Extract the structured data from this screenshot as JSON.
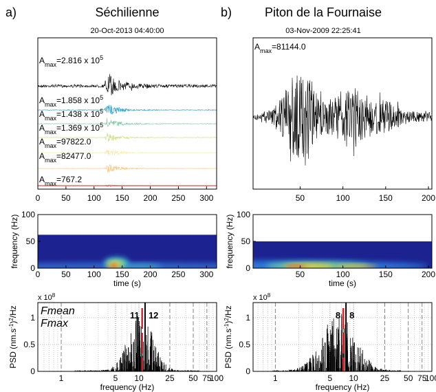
{
  "panels": [
    {
      "letter": "a)",
      "title": "Séchilienne",
      "date": "20-Oct-2013 04:40:00",
      "seismogram": {
        "type": "line",
        "xlim": [
          0,
          318
        ],
        "xticks": [
          0,
          50,
          100,
          150,
          200,
          250,
          300
        ],
        "traces": [
          {
            "color": "#000000",
            "amax": {
              "symbol": "A",
              "sub": "max",
              "text": "=2.816 x 10",
              "exp": "5"
            }
          },
          {
            "color": "#2e9bc2",
            "amax": {
              "symbol": "A",
              "sub": "max",
              "text": "=1.858 x 10",
              "exp": "5"
            }
          },
          {
            "color": "#7dc4a0",
            "amax": {
              "symbol": "A",
              "sub": "max",
              "text": "=1.438 x 10",
              "exp": "5"
            }
          },
          {
            "color": "#c8df7a",
            "amax": {
              "symbol": "A",
              "sub": "max",
              "text": "=1.369 x 10",
              "exp": "5"
            }
          },
          {
            "color": "#f2ea9a",
            "amax": {
              "symbol": "A",
              "sub": "max",
              "text": "=97822.0"
            }
          },
          {
            "color": "#f8c47a",
            "amax": {
              "symbol": "A",
              "sub": "max",
              "text": "=82477.0"
            }
          },
          {
            "color": "#e86a6a",
            "amax": {
              "symbol": "A",
              "sub": "max",
              "text": "=767.2"
            }
          }
        ]
      },
      "spectrogram": {
        "type": "heatmap",
        "ylabel": "frequency (Hz)",
        "xlabel": "time (s)",
        "xlim": [
          0,
          318
        ],
        "xticks": [
          0,
          50,
          100,
          150,
          200,
          250,
          300
        ],
        "ylim": [
          0,
          100
        ],
        "yticks": [
          0,
          50,
          100
        ],
        "nyquist": 62.5
      },
      "psd": {
        "type": "bar",
        "log_x": true,
        "xlabel": "frequency (Hz)",
        "ylabel": [
          {
            "text": "PSD (nm.s"
          },
          {
            "sup": "-1"
          },
          {
            "text": ")"
          },
          {
            "sup": "2"
          },
          {
            "text": "/Hz"
          }
        ],
        "multiplier": {
          "text": "x 10",
          "exp": "8"
        },
        "xlim": [
          0.5,
          100
        ],
        "xticks": [
          1,
          5,
          10,
          25,
          50,
          75,
          100
        ],
        "ylim": [
          0,
          1.28
        ],
        "yticks": [
          0,
          0.5,
          1
        ],
        "legend": [
          {
            "name": "Fmean",
            "color": "#555555"
          },
          {
            "name": "Fmax",
            "color": "#e0202a"
          }
        ],
        "fmean": 12,
        "fmax": 11
      }
    },
    {
      "letter": "b)",
      "title": "Piton de la Fournaise",
      "date": "03-Nov-2009 22:25:41",
      "seismogram": {
        "type": "line",
        "xlim": [
          -5,
          204
        ],
        "xticks": [
          50,
          100,
          150,
          200
        ],
        "traces": [
          {
            "color": "#000000",
            "amax": {
              "symbol": "A",
              "sub": "max",
              "text": "=81144.0"
            }
          }
        ]
      },
      "spectrogram": {
        "type": "heatmap",
        "ylabel": "frequency (Hz)",
        "xlabel": "time (s)",
        "xlim": [
          -5,
          204
        ],
        "xticks": [
          50,
          100,
          150,
          200
        ],
        "ylim": [
          0,
          100
        ],
        "yticks": [
          0,
          50,
          100
        ],
        "nyquist": 50
      },
      "psd": {
        "type": "bar",
        "log_x": true,
        "xlabel": "frequency (Hz)",
        "ylabel": [
          {
            "text": "PSD (nm.s"
          },
          {
            "sup": "-1"
          },
          {
            "text": ")"
          },
          {
            "sup": "2"
          },
          {
            "text": "/Hz"
          }
        ],
        "multiplier": {
          "text": "x 10",
          "exp": "8"
        },
        "xlim": [
          0.52,
          100
        ],
        "xticks": [
          1,
          5,
          10,
          25,
          50,
          75,
          100
        ],
        "ylim": [
          0,
          1.28
        ],
        "yticks": [
          0,
          0.5,
          1
        ],
        "fmean": 8,
        "fmax": 8
      }
    }
  ]
}
